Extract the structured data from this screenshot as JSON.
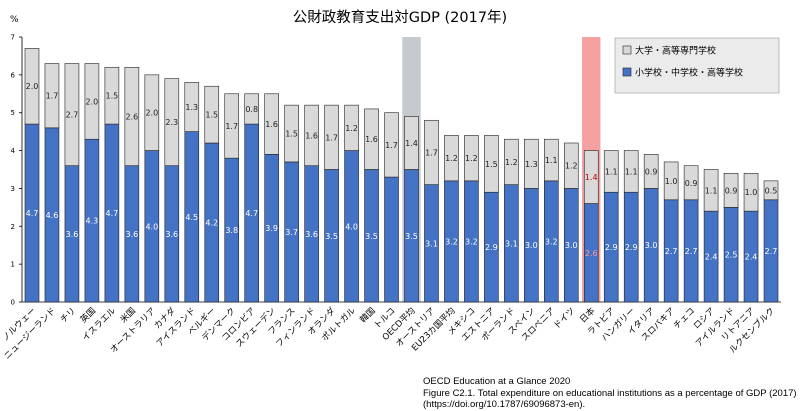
{
  "chart_data": {
    "type": "bar",
    "stacked": true,
    "title": "公財政教育支出対GDP (2017年)",
    "ylabel": "%",
    "ylim": [
      0,
      7
    ],
    "yticks": [
      0,
      1,
      2,
      3,
      4,
      5,
      6,
      7
    ],
    "categories": [
      "ノルウェー",
      "ニュージーランド",
      "チリ",
      "英国",
      "イスラエル",
      "米国",
      "オーストラリア",
      "カナダ",
      "アイスランド",
      "ベルギー",
      "デンマーク",
      "コロンビア",
      "スウェーデン",
      "フランス",
      "フィンランド",
      "オランダ",
      "ポルトガル",
      "韓国",
      "トルコ",
      "OECD平均",
      "オーストリア",
      "EU23カ国平均",
      "メキシコ",
      "エストニア",
      "ポーランド",
      "スペイン",
      "スロベニア",
      "ドイツ",
      "日本",
      "ラトビア",
      "ハンガリー",
      "イタリア",
      "スロバキア",
      "チェコ",
      "ロシア",
      "アイルランド",
      "リトアニア",
      "ルクセンブルク"
    ],
    "series": [
      {
        "name": "小学校・中学校・高等学校",
        "color": "#4472c4",
        "values": [
          4.7,
          4.6,
          3.6,
          4.3,
          4.7,
          3.6,
          4.0,
          3.6,
          4.5,
          4.2,
          3.8,
          4.7,
          3.9,
          3.7,
          3.6,
          3.5,
          4.0,
          3.5,
          3.3,
          3.5,
          3.1,
          3.2,
          3.2,
          2.9,
          3.1,
          3.0,
          3.2,
          3.0,
          2.6,
          2.9,
          2.9,
          3.0,
          2.7,
          2.7,
          2.4,
          2.5,
          2.4,
          2.7
        ]
      },
      {
        "name": "大学・高等専門学校",
        "color": "#d9d9d9",
        "values": [
          2.0,
          1.7,
          2.7,
          2.0,
          1.5,
          2.6,
          2.0,
          2.3,
          1.3,
          1.5,
          1.7,
          0.8,
          1.6,
          1.5,
          1.6,
          1.7,
          1.2,
          1.6,
          1.7,
          1.4,
          1.7,
          1.2,
          1.2,
          1.5,
          1.2,
          1.3,
          1.1,
          1.2,
          1.4,
          1.1,
          1.1,
          0.9,
          1.0,
          0.9,
          1.1,
          0.9,
          1.0,
          0.5
        ]
      }
    ],
    "bottom_labels_visible": [
      true,
      true,
      true,
      true,
      true,
      true,
      true,
      true,
      true,
      true,
      true,
      true,
      true,
      true,
      true,
      true,
      true,
      true,
      false,
      true,
      true,
      true,
      true,
      true,
      true,
      true,
      true,
      true,
      true,
      true,
      true,
      true,
      true,
      true,
      true,
      true,
      true,
      true
    ],
    "highlight": {
      "OECD平均": "#a6aeb3",
      "日本": "#f08080"
    },
    "legend_position": "top-right"
  },
  "source": {
    "line1": "OECD Education at a Glance 2020",
    "line2": "Figure C2.1. Total expenditure on educational institutions as a percentage of GDP (2017)",
    "line3": "(https://doi.org/10.1787/69096873-en)."
  }
}
